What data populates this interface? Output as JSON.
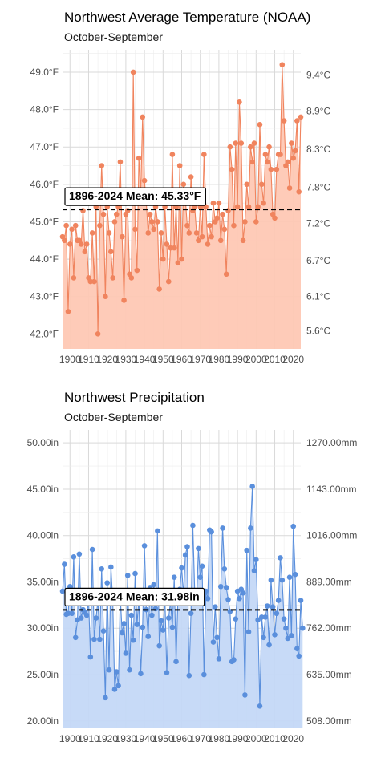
{
  "chart_data": [
    {
      "type": "area",
      "title": "Northwest Average Temperature (NOAA)",
      "subtitle": "October-September",
      "xlabel": "",
      "ylabel": "",
      "x_range": [
        1896,
        2024
      ],
      "ylim": [
        41.6,
        49.6
      ],
      "y_ticks": [
        42,
        43,
        44,
        45,
        46,
        47,
        48,
        49
      ],
      "y_tick_labels": [
        "42.0°F",
        "43.0°F",
        "44.0°F",
        "45.0°F",
        "46.0°F",
        "47.0°F",
        "48.0°F",
        "49.0°F"
      ],
      "y2_ticks": [
        42.08,
        43.0,
        43.96,
        44.96,
        45.92,
        46.94,
        47.96,
        48.92
      ],
      "y2_tick_labels": [
        "5.6°C",
        "6.1°C",
        "6.7°C",
        "7.2°C",
        "7.8°C",
        "8.3°C",
        "8.9°C",
        "9.4°C"
      ],
      "x_ticks": [
        1900,
        1910,
        1920,
        1930,
        1940,
        1950,
        1960,
        1970,
        1980,
        1990,
        2000,
        2010,
        2020
      ],
      "grid": true,
      "mean": 45.33,
      "mean_label": "1896-2024 Mean: 45.33°F",
      "line_color": "#f0845e",
      "fill_color": "#fec8b4",
      "series": [
        {
          "x_start": 1896,
          "values": [
            44.6,
            44.5,
            44.9,
            42.6,
            44.4,
            44.8,
            43.5,
            44.9,
            44.5,
            44.5,
            44.4,
            45.3,
            44.2,
            44.4,
            43.5,
            43.4,
            44.7,
            43.4,
            45.4,
            42.0,
            44.9,
            46.5,
            45.2,
            43.0,
            45.4,
            44.7,
            44.2,
            43.5,
            45.0,
            45.2,
            45.4,
            46.6,
            44.6,
            42.9,
            45.2,
            45.3,
            43.6,
            43.5,
            49.0,
            44.8,
            43.7,
            46.7,
            45.8,
            47.8,
            46.1,
            45.5,
            44.7,
            45.2,
            45.0,
            44.8,
            45.4,
            45.0,
            43.2,
            44.7,
            44.0,
            45.4,
            44.4,
            43.4,
            44.3,
            46.8,
            44.3,
            45.4,
            43.9,
            46.5,
            44.0,
            46.0,
            45.6,
            44.9,
            44.7,
            46.2,
            45.3,
            45.4,
            44.7,
            44.5,
            45.4,
            44.6,
            46.8,
            45.4,
            44.4,
            44.9,
            44.6,
            45.5,
            45.0,
            45.1,
            45.5,
            44.5,
            45.2,
            44.8,
            43.6,
            45.3,
            47.0,
            46.4,
            44.9,
            47.1,
            45.4,
            48.2,
            47.1,
            44.5,
            45.0,
            46.0,
            45.4,
            47.0,
            46.6,
            47.1,
            45.0,
            45.4,
            47.6,
            46.0,
            45.5,
            46.8,
            46.6,
            47.0,
            46.4,
            45.2,
            45.1,
            46.4,
            46.8,
            46.8,
            49.2,
            47.7,
            46.5,
            46.6,
            45.9,
            47.1,
            46.7,
            46.9,
            47.7,
            45.8,
            47.8
          ]
        }
      ]
    },
    {
      "type": "area",
      "title": "Northwest Precipitation",
      "subtitle": "October-September",
      "xlabel": "",
      "ylabel": "",
      "x_range": [
        1896,
        2024
      ],
      "ylim": [
        19.2,
        51.4
      ],
      "y_ticks": [
        20,
        25,
        30,
        35,
        40,
        45,
        50
      ],
      "y_tick_labels": [
        "20.00in",
        "25.00in",
        "30.00in",
        "35.00in",
        "40.00in",
        "45.00in",
        "50.00in"
      ],
      "y2_ticks": [
        20.0,
        25.0,
        30.0,
        35.0,
        40.0,
        45.0,
        50.0
      ],
      "y2_tick_labels": [
        "508.00mm",
        "635.00mm",
        "762.00mm",
        "889.00mm",
        "1016.00mm",
        "1143.00mm",
        "1270.00mm"
      ],
      "x_ticks": [
        1900,
        1910,
        1920,
        1930,
        1940,
        1950,
        1960,
        1970,
        1980,
        1990,
        2000,
        2010,
        2020
      ],
      "grid": true,
      "mean": 31.98,
      "mean_label": "1896-2024 Mean: 31.98in",
      "line_color": "#5a8fdc",
      "fill_color": "#c4d8f7",
      "series": [
        {
          "x_start": 1896,
          "values": [
            34.0,
            36.9,
            31.5,
            31.6,
            34.5,
            31.6,
            37.7,
            29.0,
            30.9,
            38.0,
            31.1,
            32.0,
            31.7,
            31.4,
            33.0,
            26.9,
            38.5,
            28.8,
            31.1,
            33.0,
            28.8,
            36.4,
            29.7,
            22.5,
            34.9,
            25.5,
            36.6,
            32.8,
            23.4,
            25.3,
            23.8,
            33.5,
            29.5,
            30.5,
            27.3,
            35.7,
            25.5,
            31.4,
            28.7,
            35.9,
            30.4,
            33.2,
            25.1,
            30.1,
            38.9,
            32.0,
            29.1,
            34.4,
            31.4,
            34.7,
            32.1,
            40.5,
            28.1,
            30.8,
            29.8,
            33.4,
            25.2,
            31.1,
            32.9,
            30.1,
            35.5,
            26.4,
            33.3,
            34.2,
            36.5,
            33.7,
            37.9,
            38.8,
            24.9,
            31.6,
            41.1,
            34.0,
            32.8,
            38.6,
            35.5,
            36.7,
            25.0,
            34.0,
            33.2,
            40.6,
            40.4,
            28.5,
            32.3,
            29.0,
            26.7,
            34.5,
            40.8,
            36.4,
            34.4,
            33.1,
            31.8,
            26.4,
            26.6,
            31.0,
            34.0,
            33.2,
            34.2,
            33.8,
            22.8,
            38.4,
            29.6,
            40.8,
            45.3,
            36.2,
            37.4,
            30.9,
            21.6,
            31.2,
            29.0,
            31.2,
            32.4,
            28.2,
            35.2,
            32.3,
            29.3,
            31.6,
            33.0,
            37.6,
            35.2,
            31.0,
            30.0,
            28.9,
            35.5,
            29.2,
            41.0,
            35.8,
            27.8,
            27.0,
            33.0,
            30.0
          ]
        }
      ]
    }
  ]
}
